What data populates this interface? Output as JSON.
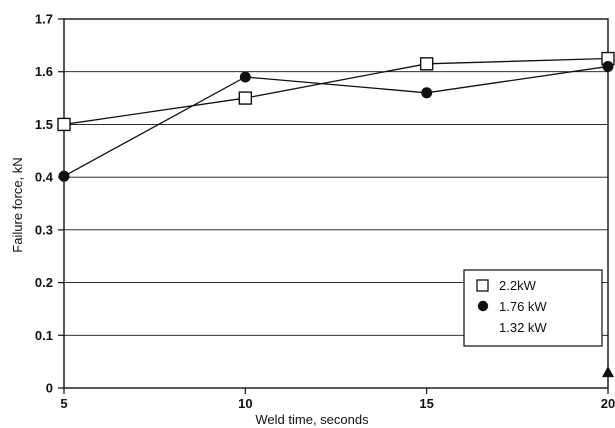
{
  "chart_data": {
    "type": "line",
    "xlabel": "Weld time, seconds",
    "ylabel": "Failure force, kN",
    "x_ticks": [
      "5",
      "10",
      "15",
      "20"
    ],
    "y_ticks": [
      "0",
      "0.1",
      "0.2",
      "0.3",
      "0.4",
      "1.5",
      "1.6",
      "1.7"
    ],
    "xlim": [
      5,
      20
    ],
    "ylim_ticks_equal_spacing": true,
    "grid": "horizontal",
    "legend_position": "bottom-right",
    "series": [
      {
        "name": "2.2kW",
        "marker": "open-square",
        "x": [
          5,
          10,
          15,
          20
        ],
        "y": [
          1.5,
          1.55,
          1.615,
          1.625
        ]
      },
      {
        "name": "1.76 kW",
        "marker": "filled-circle",
        "x": [
          5,
          10,
          15,
          20
        ],
        "y": [
          0.42,
          1.59,
          1.56,
          1.61
        ]
      },
      {
        "name": "1.32 kW",
        "marker": "filled-triangle",
        "x": [
          20
        ],
        "y": [
          0.03
        ]
      }
    ]
  }
}
